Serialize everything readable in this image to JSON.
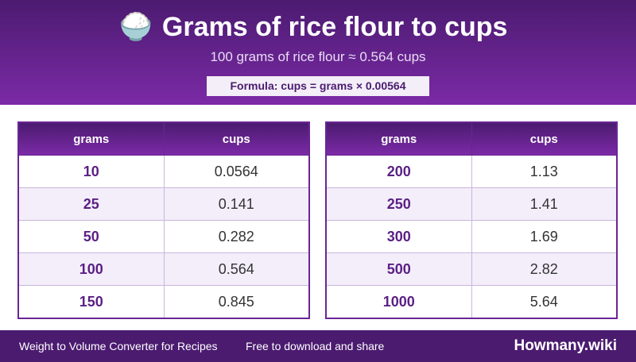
{
  "header": {
    "icon": "🍚",
    "title": "Grams of rice flour to cups",
    "subtitle": "100 grams of rice flour ≈ 0.564 cups",
    "formula": "Formula: cups = grams × 0.00564"
  },
  "tables": [
    {
      "columns": [
        "grams",
        "cups"
      ],
      "rows": [
        [
          "10",
          "0.0564"
        ],
        [
          "25",
          "0.141"
        ],
        [
          "50",
          "0.282"
        ],
        [
          "100",
          "0.564"
        ],
        [
          "150",
          "0.845"
        ]
      ]
    },
    {
      "columns": [
        "grams",
        "cups"
      ],
      "rows": [
        [
          "200",
          "1.13"
        ],
        [
          "250",
          "1.41"
        ],
        [
          "300",
          "1.69"
        ],
        [
          "500",
          "2.82"
        ],
        [
          "1000",
          "5.64"
        ]
      ]
    }
  ],
  "footer": {
    "left": "Weight to Volume Converter for Recipes",
    "middle": "Free to download and share",
    "brand": "Howmany.wiki"
  }
}
